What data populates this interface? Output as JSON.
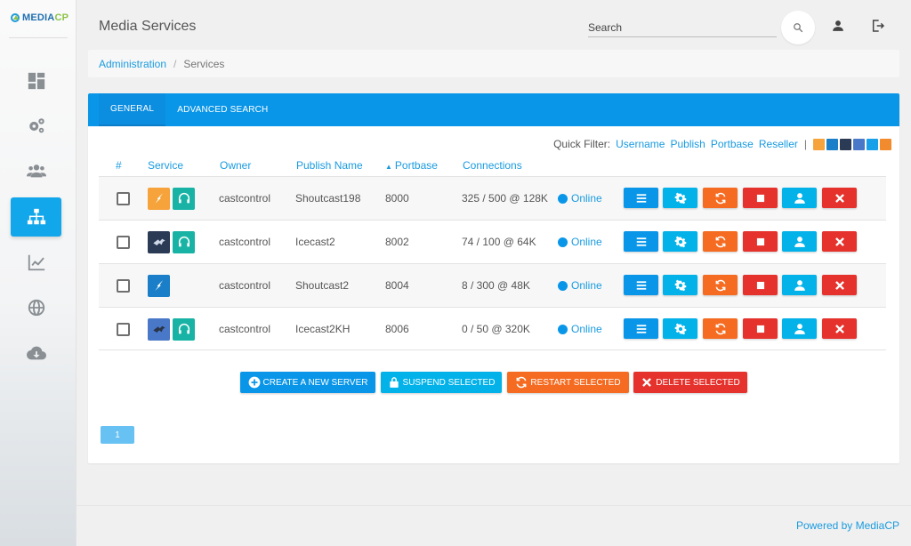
{
  "brand": {
    "logo_a": "MEDIA",
    "logo_b": "CP"
  },
  "sidebar": {
    "items": [
      {
        "name": "dashboard-icon"
      },
      {
        "name": "gears-icon"
      },
      {
        "name": "users-icon"
      },
      {
        "name": "sitemap-icon",
        "active": true
      },
      {
        "name": "chart-icon"
      },
      {
        "name": "globe-icon"
      },
      {
        "name": "cloud-download-icon"
      }
    ]
  },
  "header": {
    "title": "Media Services",
    "search_placeholder": "Search"
  },
  "breadcrumb": {
    "root": "Administration",
    "sep": "/",
    "current": "Services"
  },
  "tabs": [
    {
      "label": "GENERAL",
      "active": true
    },
    {
      "label": "ADVANCED SEARCH"
    }
  ],
  "quick_filter": {
    "label": "Quick Filter:",
    "links": [
      "Username",
      "Publish",
      "Portbase",
      "Reseller"
    ],
    "sep": "|"
  },
  "table": {
    "columns": {
      "num": "#",
      "service": "Service",
      "owner": "Owner",
      "publish": "Publish Name",
      "portbase": "Portbase",
      "connections": "Connections"
    },
    "rows": [
      {
        "owner": "castcontrol",
        "publish": "Shoutcast198",
        "portbase": "8000",
        "connections": "325 / 500 @ 128K",
        "status": "Online",
        "icons": [
          "shoutcast-orange",
          "headphones"
        ]
      },
      {
        "owner": "castcontrol",
        "publish": "Icecast2",
        "portbase": "8002",
        "connections": "74 / 100 @ 64K",
        "status": "Online",
        "icons": [
          "icecast",
          "headphones"
        ]
      },
      {
        "owner": "castcontrol",
        "publish": "Shoutcast2",
        "portbase": "8004",
        "connections": "8 / 300 @ 48K",
        "status": "Online",
        "icons": [
          "shoutcast-blue"
        ]
      },
      {
        "owner": "castcontrol",
        "publish": "Icecast2KH",
        "portbase": "8006",
        "connections": "0 / 50 @ 320K",
        "status": "Online",
        "icons": [
          "icecast-blue",
          "headphones"
        ]
      }
    ]
  },
  "bulk_actions": {
    "create": "CREATE A NEW SERVER",
    "suspend": "SUSPEND SELECTED",
    "restart": "RESTART SELECTED",
    "delete": "DELETE SELECTED"
  },
  "pagination": {
    "page": "1"
  },
  "footer": {
    "powered": "Powered by MediaCP"
  },
  "colors": {
    "primary": "#0a96e8",
    "cyan": "#03b2e8",
    "orange": "#f56b21",
    "red": "#e5322d"
  }
}
